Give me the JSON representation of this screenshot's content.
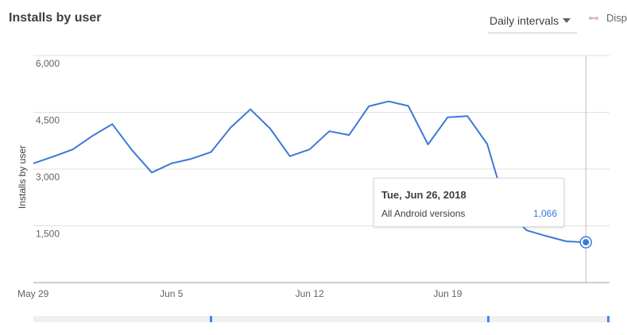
{
  "header": {
    "title": "Installs by user",
    "interval_select": {
      "selected": "Daily intervals"
    },
    "legend_toggle_label": "Disp"
  },
  "tooltip": {
    "date": "Tue, Jun 26, 2018",
    "series_name": "All Android versions",
    "value": "1,066"
  },
  "colors": {
    "series_line": "#3c78d8",
    "grid": "#e0e0e0",
    "scrubber_handle": "#4285f4"
  },
  "chart_data": {
    "type": "line",
    "title": "Installs by user",
    "ylabel": "Installs by user",
    "xlabel": "",
    "x": [
      "May 29",
      "May 30",
      "May 31",
      "Jun 1",
      "Jun 2",
      "Jun 3",
      "Jun 4",
      "Jun 5",
      "Jun 6",
      "Jun 7",
      "Jun 8",
      "Jun 9",
      "Jun 10",
      "Jun 11",
      "Jun 12",
      "Jun 13",
      "Jun 14",
      "Jun 15",
      "Jun 16",
      "Jun 17",
      "Jun 18",
      "Jun 19",
      "Jun 20",
      "Jun 21",
      "Jun 22",
      "Jun 23",
      "Jun 24",
      "Jun 25",
      "Jun 26"
    ],
    "x_tick_labels": [
      "May 29",
      "Jun 5",
      "Jun 12",
      "Jun 19"
    ],
    "ylim": [
      0,
      6000
    ],
    "y_ticks": [
      1500,
      3000,
      4500,
      6000
    ],
    "y_tick_labels": [
      "1,500",
      "3,000",
      "4,500",
      "6,000"
    ],
    "grid": true,
    "series": [
      {
        "name": "All Android versions",
        "values": [
          3150,
          3330,
          3520,
          3880,
          4190,
          3500,
          2910,
          3150,
          3270,
          3450,
          4100,
          4580,
          4070,
          3340,
          3520,
          4000,
          3900,
          4660,
          4790,
          4670,
          3650,
          4370,
          4400,
          3660,
          1900,
          1380,
          1230,
          1090,
          1066
        ]
      }
    ],
    "highlighted_point": {
      "x": "Jun 26",
      "value": 1066
    }
  }
}
